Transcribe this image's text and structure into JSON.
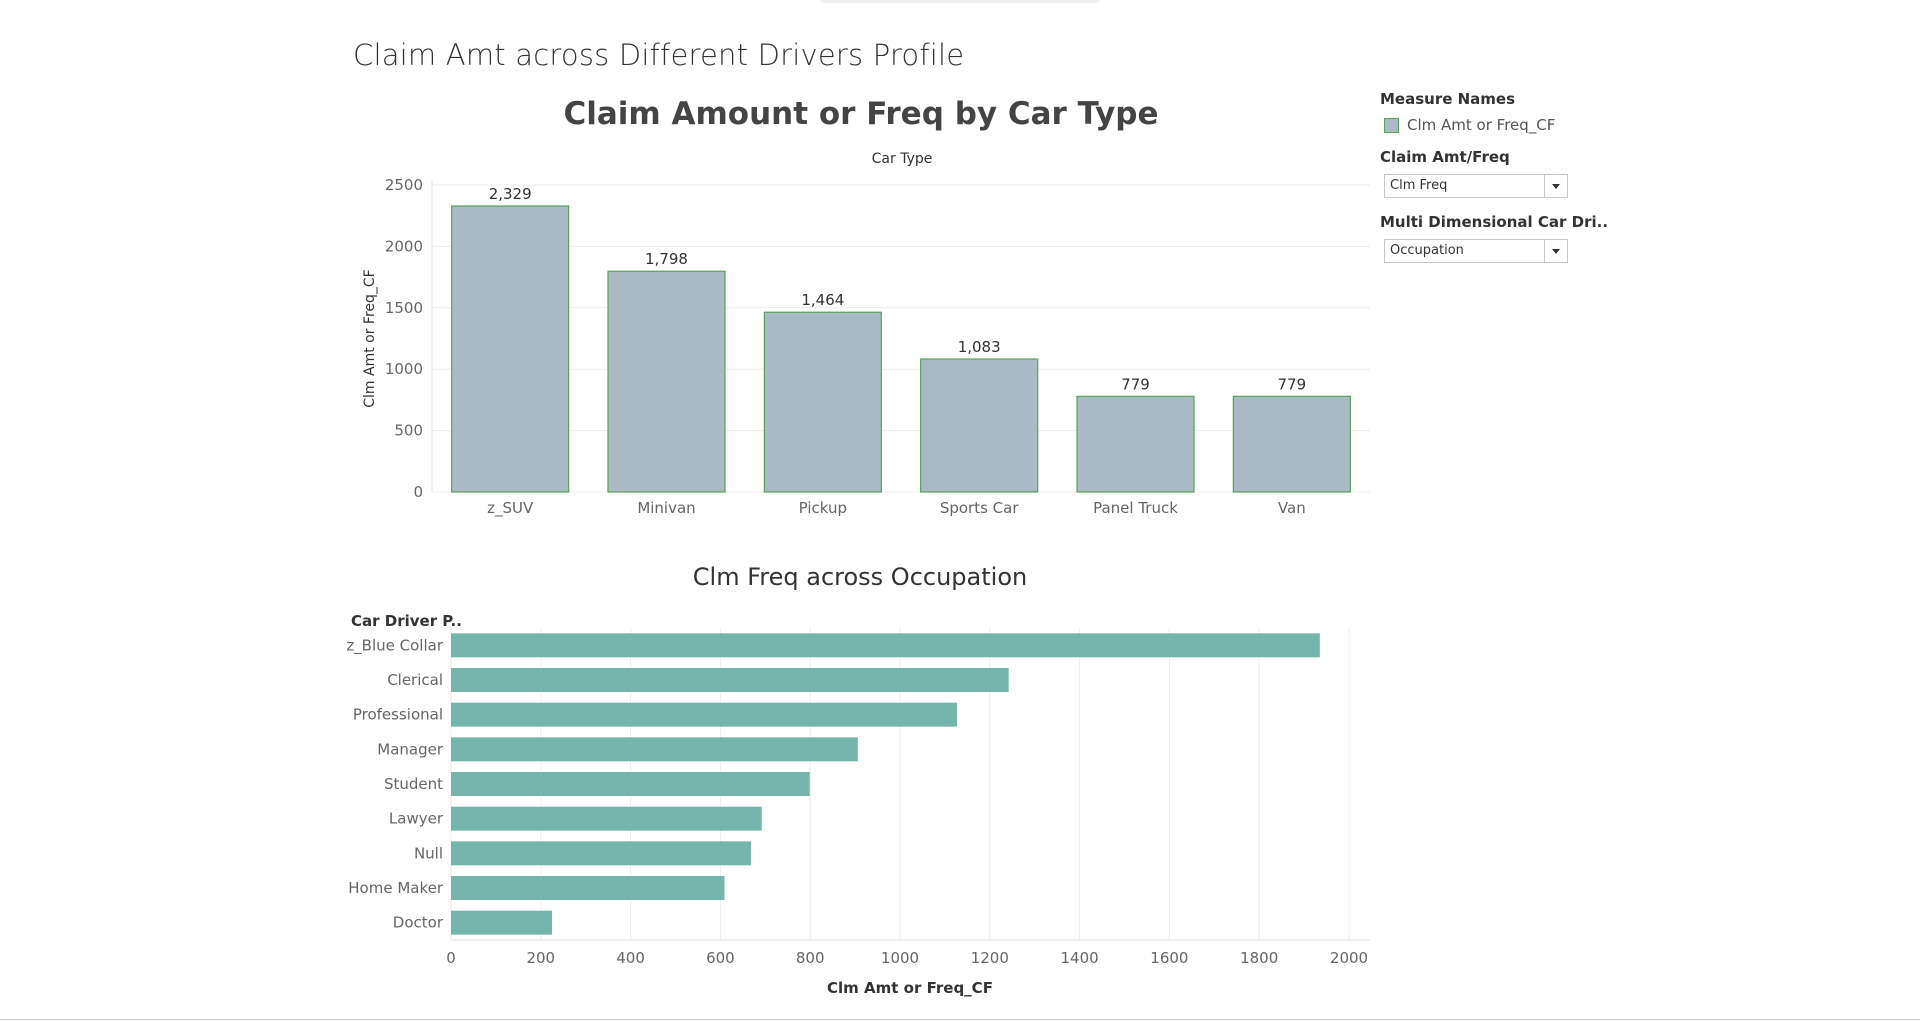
{
  "dashboard": {
    "title": "Claim Amt across Different Drivers Profile"
  },
  "legend": {
    "title": "Measure Names",
    "item_label": "Clm Amt or Freq_CF",
    "item_color": "#a9bac4",
    "item_border": "#5aa25a"
  },
  "filters": {
    "claim_amt_freq": {
      "title": "Claim Amt/Freq",
      "selected": "Clm Freq"
    },
    "multi_dim": {
      "title": "Multi Dimensional Car Dri..",
      "selected": "Occupation"
    }
  },
  "chart_data": [
    {
      "type": "bar",
      "title": "Claim Amount or Freq by Car Type",
      "xlabel": "Car Type",
      "ylabel": "Clm Amt or Freq_CF",
      "categories": [
        "z_SUV",
        "Minivan",
        "Pickup",
        "Sports Car",
        "Panel Truck",
        "Van"
      ],
      "values": [
        2329,
        1798,
        1464,
        1083,
        779,
        779
      ],
      "data_labels": [
        "2,329",
        "1,798",
        "1,464",
        "1,083",
        "779",
        "779"
      ],
      "ylim": [
        0,
        2500
      ],
      "yticks": [
        0,
        500,
        1000,
        1500,
        2000,
        2500
      ],
      "grid": true,
      "bar_color": "#a9bac4",
      "bar_border": "#5aa25a"
    },
    {
      "type": "bar",
      "orientation": "horizontal",
      "title": "Clm Freq across Occupation",
      "ylabel": "Car Driver P..",
      "xlabel": "Clm Amt or Freq_CF",
      "categories": [
        "z_Blue Collar",
        "Clerical",
        "Professional",
        "Manager",
        "Student",
        "Lawyer",
        "Null",
        "Home Maker",
        "Doctor"
      ],
      "values": [
        1935,
        1242,
        1127,
        906,
        799,
        692,
        668,
        609,
        225
      ],
      "xlim": [
        0,
        2000
      ],
      "xticks": [
        0,
        200,
        400,
        600,
        800,
        1000,
        1200,
        1400,
        1600,
        1800,
        2000
      ],
      "grid": true,
      "bar_color": "#76b5ac"
    }
  ]
}
